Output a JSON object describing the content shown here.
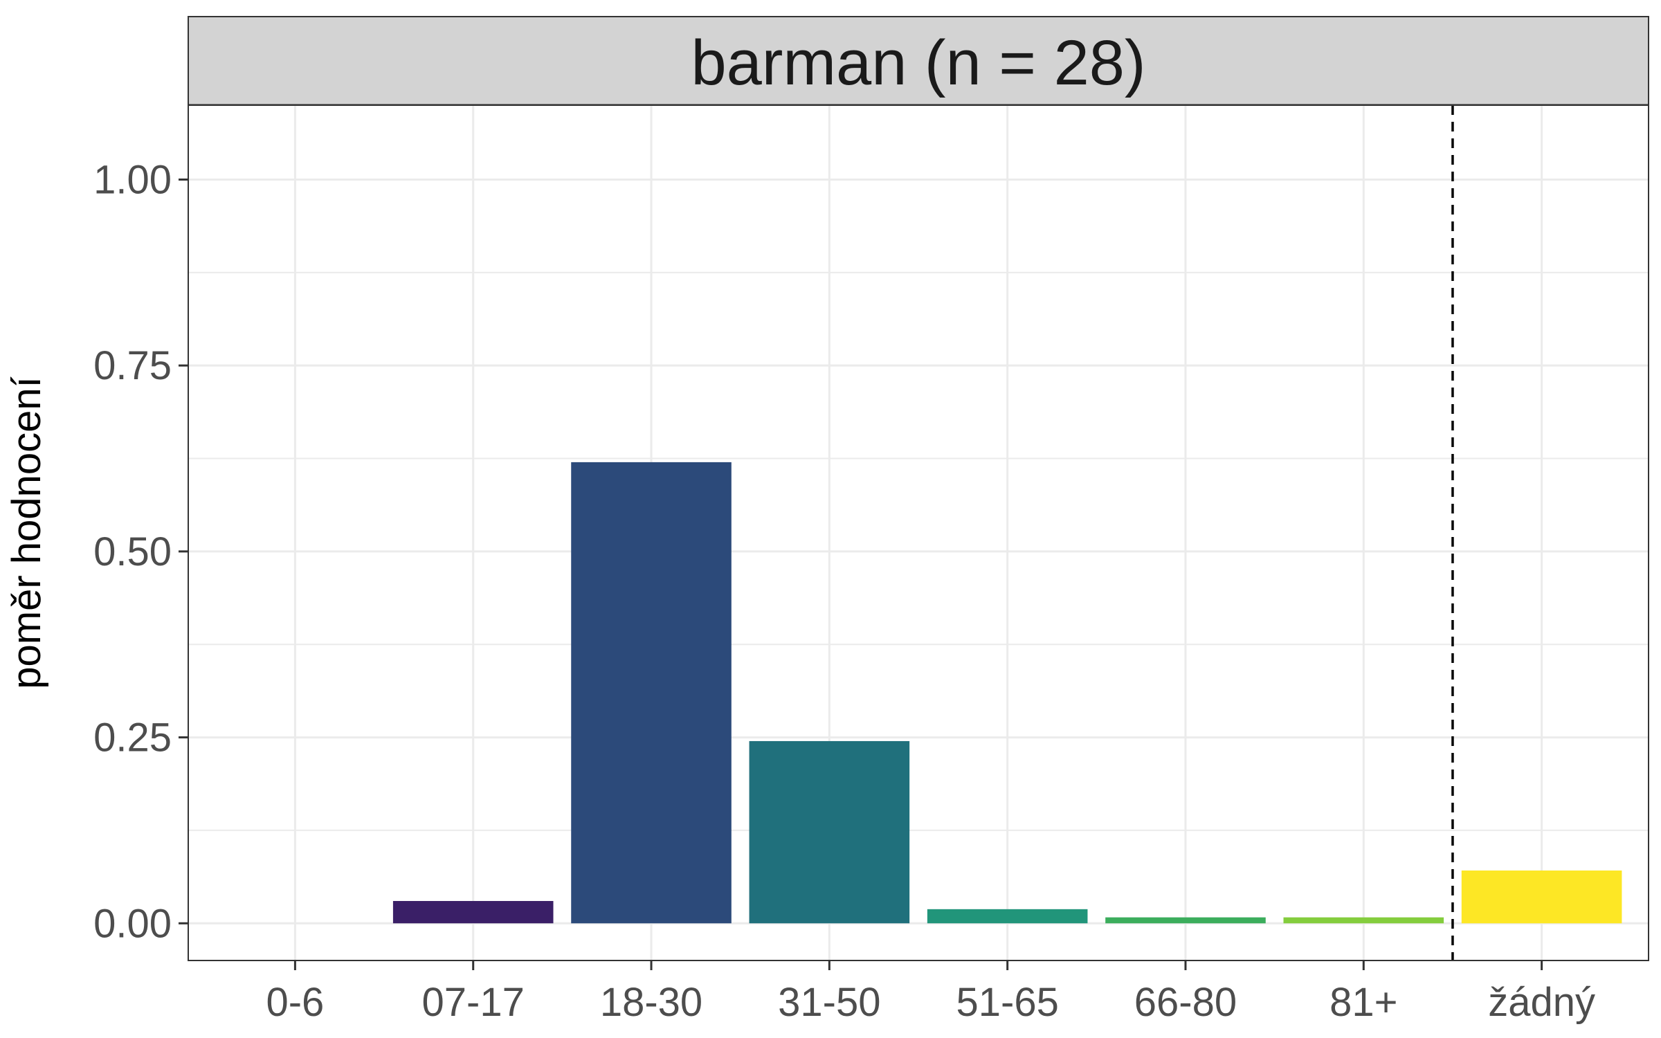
{
  "chart_data": {
    "type": "bar",
    "title": "barman (n = 28)",
    "xlabel": "",
    "ylabel": "poměr hodnocení",
    "categories": [
      "0-6",
      "07-17",
      "18-30",
      "31-50",
      "51-65",
      "66-80",
      "81+",
      "žádný"
    ],
    "values": [
      0.0,
      0.03,
      0.62,
      0.245,
      0.019,
      0.008,
      0.008,
      0.071
    ],
    "ylim": [
      -0.05,
      1.1
    ],
    "yticks": [
      0.0,
      0.25,
      0.5,
      0.75,
      1.0
    ],
    "ytick_labels": [
      "0.00",
      "0.25",
      "0.50",
      "0.75",
      "1.00"
    ],
    "grid": true,
    "reference_line": {
      "after_category": "81+",
      "style": "dashed"
    },
    "colors": [
      "#440154",
      "#3a1f67",
      "#2c4a7a",
      "#20707c",
      "#21957a",
      "#3bad5c",
      "#84cd3d",
      "#fde725"
    ]
  }
}
